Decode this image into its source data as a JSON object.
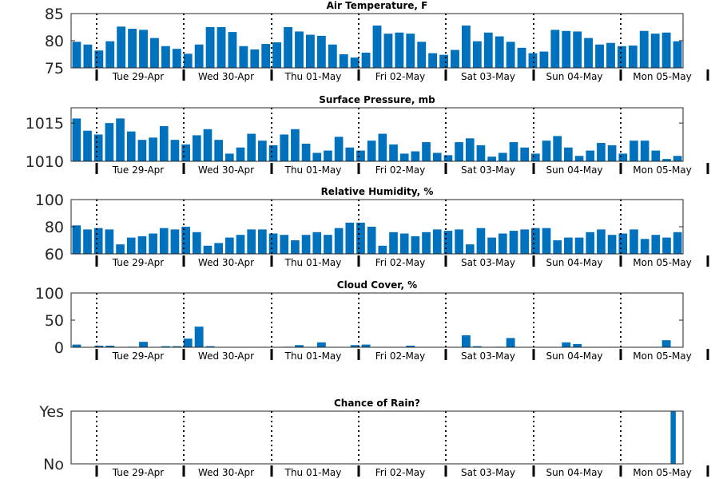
{
  "chart_data": {
    "type": "bar",
    "x_labels": [
      "Tue 29-Apr",
      "Wed 30-Apr",
      "Thu 01-May",
      "Fri 02-May",
      "Sat 03-May",
      "Sun 04-May",
      "Mon 05-May"
    ],
    "bar_color": "#0072bd",
    "panels": [
      {
        "title": "Air Temperature, F",
        "ylim": [
          75,
          85
        ],
        "yticks": [
          {
            "v": 75,
            "label": "75"
          },
          {
            "v": 80,
            "label": "80"
          },
          {
            "v": 85,
            "label": "85"
          }
        ],
        "values": [
          79.8,
          79.3,
          78.2,
          79.9,
          82.6,
          82.2,
          82.0,
          80.5,
          79.0,
          78.5,
          77.6,
          79.3,
          82.5,
          82.5,
          81.6,
          79.0,
          78.4,
          79.4,
          79.7,
          82.5,
          81.7,
          81.1,
          80.9,
          79.3,
          77.5,
          76.9,
          77.8,
          82.8,
          81.3,
          81.5,
          81.3,
          79.8,
          77.7,
          77.4,
          78.3,
          82.8,
          79.9,
          81.5,
          80.8,
          79.8,
          78.7,
          77.7,
          78.0,
          82.0,
          81.8,
          81.7,
          80.5,
          79.3,
          79.6,
          79.0,
          79.1,
          81.8,
          81.3,
          81.5,
          79.9
        ]
      },
      {
        "title": "Surface Pressure, mb",
        "ylim": [
          1010,
          1017
        ],
        "yticks": [
          {
            "v": 1010,
            "label": "1010"
          },
          {
            "v": 1015,
            "label": "1015"
          }
        ],
        "values": [
          1015.6,
          1014.0,
          1013.5,
          1015.0,
          1015.6,
          1013.9,
          1012.8,
          1013.1,
          1014.6,
          1012.8,
          1012.2,
          1013.4,
          1014.2,
          1012.8,
          1011.0,
          1011.8,
          1013.6,
          1012.7,
          1012.1,
          1013.5,
          1014.2,
          1012.3,
          1011.1,
          1011.4,
          1013.2,
          1011.8,
          1011.4,
          1012.7,
          1013.6,
          1012.2,
          1011.0,
          1011.3,
          1012.5,
          1011.1,
          1010.8,
          1012.5,
          1013.0,
          1012.1,
          1010.6,
          1011.1,
          1012.5,
          1011.8,
          1011.0,
          1012.7,
          1013.3,
          1011.8,
          1010.7,
          1011.4,
          1012.4,
          1012.1,
          1011.0,
          1012.7,
          1012.7,
          1011.4,
          1010.3,
          1010.7
        ]
      },
      {
        "title": "Relative Humidity, %",
        "ylim": [
          60,
          100
        ],
        "yticks": [
          {
            "v": 60,
            "label": "60"
          },
          {
            "v": 80,
            "label": "80"
          },
          {
            "v": 100,
            "label": "100"
          }
        ],
        "values": [
          81,
          78,
          79,
          78,
          67,
          72,
          73,
          75,
          79,
          78,
          80,
          76,
          66,
          68,
          72,
          74,
          78,
          78,
          75,
          74,
          70,
          74,
          76,
          74,
          79,
          83,
          83,
          80,
          66,
          76,
          75,
          73,
          76,
          78,
          77,
          78,
          67,
          79,
          72,
          75,
          77,
          78,
          79,
          79,
          70,
          72,
          72,
          76,
          78,
          74,
          75,
          78,
          71,
          74,
          72,
          76
        ]
      },
      {
        "title": "Cloud Cover, %",
        "ylim": [
          0,
          100
        ],
        "yticks": [
          {
            "v": 0,
            "label": "0"
          },
          {
            "v": 50,
            "label": "50"
          },
          {
            "v": 100,
            "label": "100"
          }
        ],
        "values": [
          5,
          0,
          3,
          3,
          0,
          1,
          10,
          0,
          2,
          2,
          16,
          38,
          2,
          0,
          0,
          0,
          0,
          0,
          0,
          1,
          4,
          0,
          9,
          0,
          0,
          4,
          5,
          0,
          0,
          0,
          3,
          0,
          0,
          0,
          0,
          22,
          2,
          0,
          1,
          17,
          0,
          0,
          0,
          0,
          9,
          6,
          0,
          0,
          0,
          0,
          0,
          0,
          0,
          13,
          0
        ]
      },
      {
        "title": "Chance of Rain?",
        "ylim": [
          0,
          1
        ],
        "yticks": [
          {
            "v": 0,
            "label": "No"
          },
          {
            "v": 1,
            "label": "Yes"
          }
        ],
        "values": [
          0,
          0,
          0,
          0,
          0,
          0,
          0,
          0,
          0,
          0,
          0,
          0,
          0,
          0,
          0,
          0,
          0,
          0,
          0,
          0,
          0,
          0,
          0,
          0,
          0,
          0,
          0,
          0,
          0,
          0,
          0,
          0,
          0,
          0,
          0,
          0,
          0,
          0,
          0,
          0,
          0,
          0,
          0,
          0,
          0,
          0,
          0,
          0,
          0,
          0,
          0,
          0,
          0,
          0,
          0,
          0,
          0,
          0,
          0,
          0,
          0,
          0,
          0,
          0,
          0,
          0,
          0,
          0,
          0,
          0,
          0,
          0,
          0,
          0,
          0,
          0,
          0,
          0,
          0,
          0,
          0,
          0,
          0,
          0,
          0,
          0,
          0,
          0,
          0,
          0,
          0,
          1,
          0
        ]
      }
    ]
  }
}
